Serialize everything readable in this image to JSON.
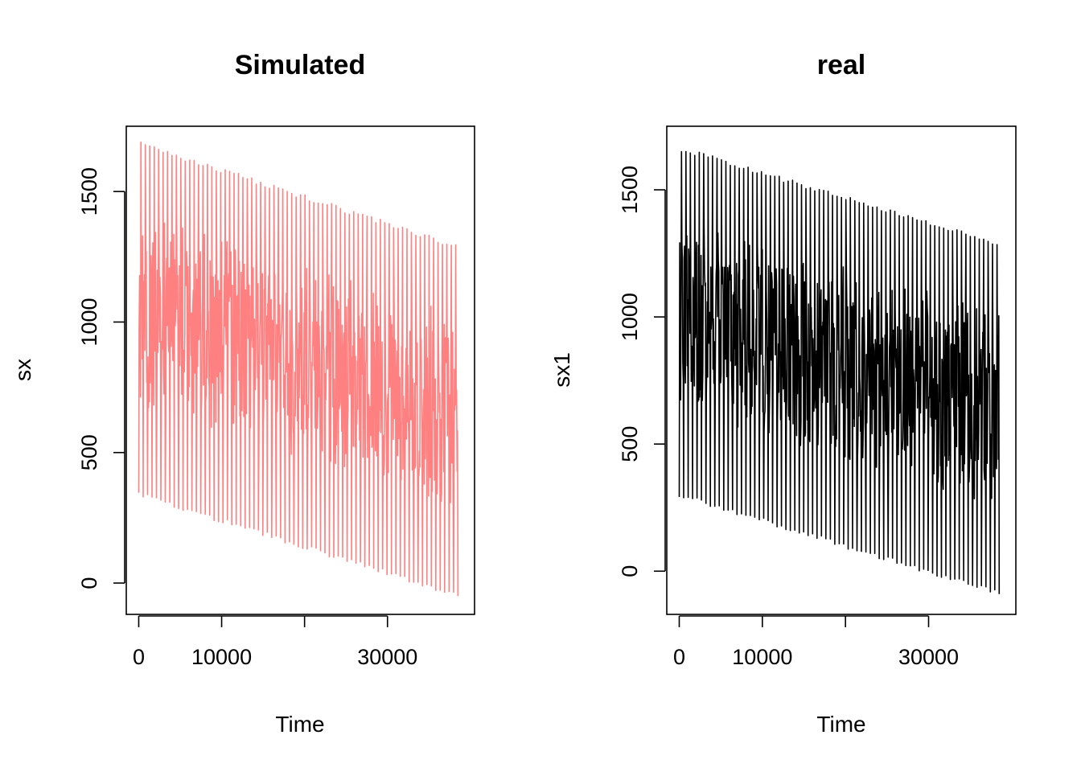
{
  "chart_data": [
    {
      "type": "line",
      "title": "Simulated",
      "xlabel": "Time",
      "ylabel": "sx",
      "line_color": "#FF8080",
      "xlim": [
        -1500,
        40500
      ],
      "ylim": [
        -120,
        1750
      ],
      "x_ticks": [
        0,
        10000,
        20000,
        30000
      ],
      "x_tick_labels": [
        "0",
        "10000",
        "",
        "30000"
      ],
      "y_ticks": [
        0,
        500,
        1000,
        1500
      ],
      "y_tick_labels": [
        "0",
        "500",
        "1000",
        "1500"
      ],
      "series": [
        {
          "name": "sx",
          "x_range": [
            0,
            38500
          ],
          "cycles": 72,
          "peak_start": 1690,
          "peak_end": 1300,
          "trough_start": 330,
          "trough_end": -50
        }
      ]
    },
    {
      "type": "line",
      "title": "real",
      "xlabel": "Time",
      "ylabel": "sx1",
      "line_color": "#000000",
      "xlim": [
        -1500,
        40500
      ],
      "ylim": [
        -170,
        1750
      ],
      "x_ticks": [
        0,
        10000,
        20000,
        30000
      ],
      "x_tick_labels": [
        "0",
        "10000",
        "",
        "30000"
      ],
      "y_ticks": [
        0,
        500,
        1000,
        1500
      ],
      "y_tick_labels": [
        "0",
        "500",
        "1000",
        "1500"
      ],
      "series": [
        {
          "name": "sx1",
          "x_range": [
            0,
            38500
          ],
          "cycles": 72,
          "peak_start": 1670,
          "peak_end": 1300,
          "trough_start": 290,
          "trough_end": -90
        }
      ]
    }
  ]
}
